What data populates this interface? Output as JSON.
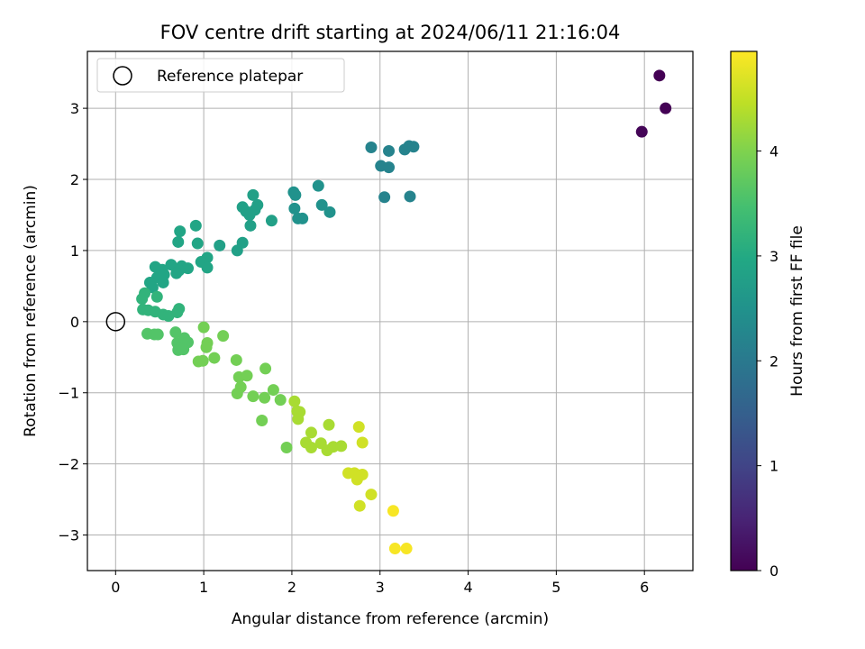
{
  "chart_data": {
    "type": "scatter",
    "title": "FOV centre drift starting at 2024/06/11 21:16:04",
    "xlabel": "Angular distance from reference (arcmin)",
    "ylabel": "Rotation from reference (arcmin)",
    "xlim": [
      -0.32,
      6.55
    ],
    "ylim": [
      -3.5,
      3.8
    ],
    "xticks": [
      0,
      1,
      2,
      3,
      4,
      5,
      6
    ],
    "yticks": [
      -3,
      -2,
      -1,
      0,
      1,
      2,
      3
    ],
    "grid": true,
    "legend": {
      "placement": "top-left",
      "entries": [
        "Reference platepar"
      ]
    },
    "reference_point": {
      "x": 0,
      "y": 0
    },
    "colorbar": {
      "label": "Hours from first FF file",
      "colormap": "viridis",
      "range": [
        0,
        4.95
      ],
      "ticks": [
        0,
        1,
        2,
        3,
        4
      ]
    },
    "points": [
      {
        "x": 6.17,
        "y": 3.46,
        "c": 0.0
      },
      {
        "x": 6.24,
        "y": 3.0,
        "c": 0.02
      },
      {
        "x": 5.97,
        "y": 2.67,
        "c": 0.05
      },
      {
        "x": 2.9,
        "y": 2.45,
        "c": 2.2
      },
      {
        "x": 3.1,
        "y": 2.4,
        "c": 2.2
      },
      {
        "x": 3.28,
        "y": 2.42,
        "c": 2.2
      },
      {
        "x": 3.33,
        "y": 2.47,
        "c": 2.2
      },
      {
        "x": 3.38,
        "y": 2.46,
        "c": 2.2
      },
      {
        "x": 3.01,
        "y": 2.19,
        "c": 2.2
      },
      {
        "x": 3.1,
        "y": 2.17,
        "c": 2.2
      },
      {
        "x": 3.05,
        "y": 1.75,
        "c": 2.2
      },
      {
        "x": 3.34,
        "y": 1.76,
        "c": 2.2
      },
      {
        "x": 2.3,
        "y": 1.91,
        "c": 2.5
      },
      {
        "x": 2.02,
        "y": 1.82,
        "c": 2.5
      },
      {
        "x": 2.04,
        "y": 1.78,
        "c": 2.5
      },
      {
        "x": 2.34,
        "y": 1.64,
        "c": 2.5
      },
      {
        "x": 2.03,
        "y": 1.59,
        "c": 2.5
      },
      {
        "x": 2.43,
        "y": 1.54,
        "c": 2.5
      },
      {
        "x": 2.07,
        "y": 1.45,
        "c": 2.5
      },
      {
        "x": 2.12,
        "y": 1.45,
        "c": 2.5
      },
      {
        "x": 1.56,
        "y": 1.78,
        "c": 2.8
      },
      {
        "x": 1.61,
        "y": 1.64,
        "c": 2.8
      },
      {
        "x": 1.44,
        "y": 1.61,
        "c": 2.8
      },
      {
        "x": 1.48,
        "y": 1.55,
        "c": 2.8
      },
      {
        "x": 1.52,
        "y": 1.5,
        "c": 2.8
      },
      {
        "x": 1.58,
        "y": 1.57,
        "c": 2.8
      },
      {
        "x": 1.77,
        "y": 1.42,
        "c": 2.8
      },
      {
        "x": 1.53,
        "y": 1.35,
        "c": 2.8
      },
      {
        "x": 1.44,
        "y": 1.11,
        "c": 2.8
      },
      {
        "x": 1.38,
        "y": 1.0,
        "c": 2.8
      },
      {
        "x": 1.18,
        "y": 1.07,
        "c": 2.8
      },
      {
        "x": 0.91,
        "y": 1.35,
        "c": 2.9
      },
      {
        "x": 0.73,
        "y": 1.27,
        "c": 2.9
      },
      {
        "x": 0.71,
        "y": 1.12,
        "c": 2.9
      },
      {
        "x": 0.93,
        "y": 1.1,
        "c": 2.9
      },
      {
        "x": 1.04,
        "y": 0.9,
        "c": 2.9
      },
      {
        "x": 0.97,
        "y": 0.84,
        "c": 2.9
      },
      {
        "x": 0.75,
        "y": 0.78,
        "c": 2.9
      },
      {
        "x": 0.82,
        "y": 0.75,
        "c": 2.9
      },
      {
        "x": 1.04,
        "y": 0.76,
        "c": 2.9
      },
      {
        "x": 0.63,
        "y": 0.8,
        "c": 2.9
      },
      {
        "x": 0.72,
        "y": 0.72,
        "c": 2.9
      },
      {
        "x": 0.69,
        "y": 0.68,
        "c": 2.9
      },
      {
        "x": 0.45,
        "y": 0.77,
        "c": 2.9
      },
      {
        "x": 0.53,
        "y": 0.73,
        "c": 2.9
      },
      {
        "x": 0.47,
        "y": 0.62,
        "c": 2.9
      },
      {
        "x": 0.39,
        "y": 0.55,
        "c": 2.9
      },
      {
        "x": 0.54,
        "y": 0.55,
        "c": 2.9
      },
      {
        "x": 0.42,
        "y": 0.48,
        "c": 2.9
      },
      {
        "x": 0.55,
        "y": 0.66,
        "c": 2.9
      },
      {
        "x": 0.33,
        "y": 0.4,
        "c": 3.2
      },
      {
        "x": 0.3,
        "y": 0.32,
        "c": 3.2
      },
      {
        "x": 0.47,
        "y": 0.35,
        "c": 3.2
      },
      {
        "x": 0.31,
        "y": 0.17,
        "c": 3.2
      },
      {
        "x": 0.37,
        "y": 0.16,
        "c": 3.2
      },
      {
        "x": 0.45,
        "y": 0.14,
        "c": 3.2
      },
      {
        "x": 0.54,
        "y": 0.1,
        "c": 3.2
      },
      {
        "x": 0.6,
        "y": 0.08,
        "c": 3.2
      },
      {
        "x": 0.7,
        "y": 0.13,
        "c": 3.2
      },
      {
        "x": 0.72,
        "y": 0.18,
        "c": 3.2
      },
      {
        "x": 0.36,
        "y": -0.17,
        "c": 3.6
      },
      {
        "x": 0.44,
        "y": -0.18,
        "c": 3.6
      },
      {
        "x": 0.48,
        "y": -0.18,
        "c": 3.6
      },
      {
        "x": 0.68,
        "y": -0.15,
        "c": 3.6
      },
      {
        "x": 0.7,
        "y": -0.3,
        "c": 3.6
      },
      {
        "x": 0.74,
        "y": -0.36,
        "c": 3.6
      },
      {
        "x": 0.71,
        "y": -0.4,
        "c": 3.6
      },
      {
        "x": 0.78,
        "y": -0.23,
        "c": 3.6
      },
      {
        "x": 0.82,
        "y": -0.29,
        "c": 3.6
      },
      {
        "x": 0.77,
        "y": -0.39,
        "c": 3.6
      },
      {
        "x": 0.94,
        "y": -0.56,
        "c": 3.9
      },
      {
        "x": 0.99,
        "y": -0.55,
        "c": 3.9
      },
      {
        "x": 1.0,
        "y": -0.08,
        "c": 3.9
      },
      {
        "x": 1.04,
        "y": -0.3,
        "c": 3.9
      },
      {
        "x": 1.03,
        "y": -0.36,
        "c": 3.9
      },
      {
        "x": 1.12,
        "y": -0.51,
        "c": 3.9
      },
      {
        "x": 1.22,
        "y": -0.2,
        "c": 3.9
      },
      {
        "x": 1.37,
        "y": -0.54,
        "c": 3.9
      },
      {
        "x": 1.4,
        "y": -0.78,
        "c": 3.9
      },
      {
        "x": 1.49,
        "y": -0.76,
        "c": 3.9
      },
      {
        "x": 1.42,
        "y": -0.92,
        "c": 3.9
      },
      {
        "x": 1.38,
        "y": -1.01,
        "c": 3.9
      },
      {
        "x": 1.56,
        "y": -1.05,
        "c": 3.9
      },
      {
        "x": 1.7,
        "y": -0.66,
        "c": 3.9
      },
      {
        "x": 1.69,
        "y": -1.07,
        "c": 3.9
      },
      {
        "x": 1.79,
        "y": -0.96,
        "c": 3.9
      },
      {
        "x": 1.87,
        "y": -1.1,
        "c": 3.9
      },
      {
        "x": 1.66,
        "y": -1.39,
        "c": 3.9
      },
      {
        "x": 1.94,
        "y": -1.77,
        "c": 3.9
      },
      {
        "x": 2.03,
        "y": -1.12,
        "c": 4.3
      },
      {
        "x": 2.06,
        "y": -1.26,
        "c": 4.3
      },
      {
        "x": 2.09,
        "y": -1.27,
        "c": 4.3
      },
      {
        "x": 2.07,
        "y": -1.37,
        "c": 4.3
      },
      {
        "x": 2.16,
        "y": -1.7,
        "c": 4.3
      },
      {
        "x": 2.22,
        "y": -1.56,
        "c": 4.3
      },
      {
        "x": 2.22,
        "y": -1.77,
        "c": 4.3
      },
      {
        "x": 2.33,
        "y": -1.71,
        "c": 4.3
      },
      {
        "x": 2.4,
        "y": -1.81,
        "c": 4.3
      },
      {
        "x": 2.42,
        "y": -1.45,
        "c": 4.3
      },
      {
        "x": 2.47,
        "y": -1.76,
        "c": 4.3
      },
      {
        "x": 2.56,
        "y": -1.75,
        "c": 4.3
      },
      {
        "x": 2.76,
        "y": -1.48,
        "c": 4.6
      },
      {
        "x": 2.8,
        "y": -1.7,
        "c": 4.6
      },
      {
        "x": 2.64,
        "y": -2.13,
        "c": 4.6
      },
      {
        "x": 2.71,
        "y": -2.13,
        "c": 4.6
      },
      {
        "x": 2.76,
        "y": -2.16,
        "c": 4.6
      },
      {
        "x": 2.8,
        "y": -2.15,
        "c": 4.6
      },
      {
        "x": 2.74,
        "y": -2.22,
        "c": 4.6
      },
      {
        "x": 2.9,
        "y": -2.43,
        "c": 4.6
      },
      {
        "x": 2.77,
        "y": -2.59,
        "c": 4.6
      },
      {
        "x": 3.15,
        "y": -2.66,
        "c": 4.9
      },
      {
        "x": 3.17,
        "y": -3.19,
        "c": 4.9
      },
      {
        "x": 3.3,
        "y": -3.19,
        "c": 4.9
      }
    ]
  }
}
